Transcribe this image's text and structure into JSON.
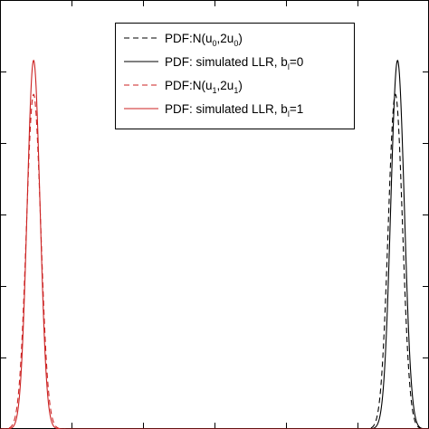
{
  "chart_data": {
    "type": "line",
    "title": "",
    "xlabel": "",
    "ylabel": "",
    "xlim": [
      -30,
      30
    ],
    "ylim": [
      0,
      0.12
    ],
    "x_ticks": [
      -30,
      -20,
      -10,
      0,
      10,
      20,
      30
    ],
    "y_ticks": [
      0.02,
      0.04,
      0.06,
      0.08,
      0.1,
      0.12
    ],
    "grid": false,
    "legend_position": "top-center",
    "series": [
      {
        "mu": 25.3,
        "sigma": 1.0,
        "peak": 0.0936,
        "color": "#000000",
        "dash": "dashed"
      },
      {
        "mu": 25.6,
        "sigma": 0.95,
        "peak": 0.1031,
        "color": "#000000",
        "dash": "solid"
      },
      {
        "mu": -25.3,
        "sigma": 1.0,
        "peak": 0.0936,
        "color": "#cc2222",
        "dash": "dashed"
      },
      {
        "mu": -25.3,
        "sigma": 0.9,
        "peak": 0.1031,
        "color": "#cc2222",
        "dash": "solid"
      }
    ],
    "legend": [
      {
        "parts": [
          {
            "t": "PDF:N(u"
          },
          {
            "t": "0",
            "sub": true
          },
          {
            "t": ",2u"
          },
          {
            "t": "0",
            "sub": true
          },
          {
            "t": ")"
          }
        ],
        "color": "#000000",
        "dash": "dashed"
      },
      {
        "parts": [
          {
            "t": "PDF: simulated LLR, b"
          },
          {
            "t": "l",
            "sub": true
          },
          {
            "t": "=0"
          }
        ],
        "color": "#000000",
        "dash": "solid"
      },
      {
        "parts": [
          {
            "t": "PDF:N(u"
          },
          {
            "t": "1",
            "sub": true
          },
          {
            "t": ",2u"
          },
          {
            "t": "1",
            "sub": true
          },
          {
            "t": ")"
          }
        ],
        "color": "#cc2222",
        "dash": "dashed"
      },
      {
        "parts": [
          {
            "t": "PDF: simulated LLR, b"
          },
          {
            "t": "l",
            "sub": true
          },
          {
            "t": "=1"
          }
        ],
        "color": "#cc2222",
        "dash": "solid"
      }
    ]
  }
}
